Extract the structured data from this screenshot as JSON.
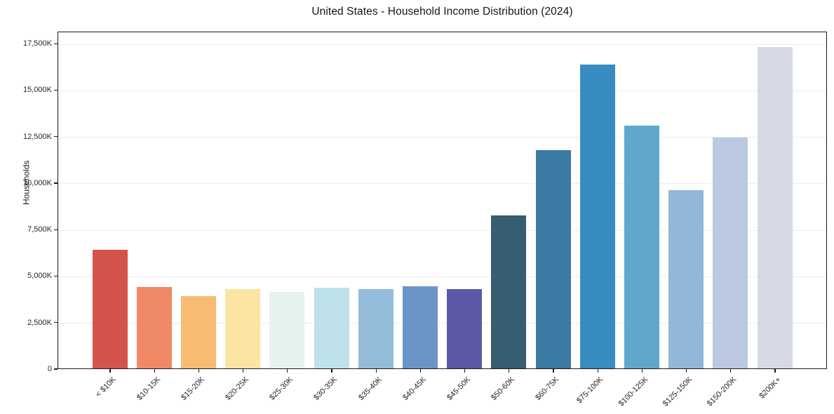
{
  "chart_data": {
    "type": "bar",
    "title": "United States - Household Income Distribution (2024)",
    "xlabel": "",
    "ylabel": "Households",
    "unit": "thousands of households",
    "categories": [
      "< $10K",
      "$10-15K",
      "$15-20K",
      "$20-25K",
      "$25-30K",
      "$30-35K",
      "$35-40K",
      "$40-45K",
      "$45-50K",
      "$50-60K",
      "$60-75K",
      "$75-100K",
      "$100-125K",
      "$125-150K",
      "$150-200K",
      "$200K+"
    ],
    "values": [
      6380,
      4380,
      3890,
      4260,
      4110,
      4340,
      4260,
      4420,
      4260,
      8230,
      11740,
      16340,
      13060,
      9590,
      12420,
      17280
    ],
    "bar_colors": [
      "#d3544b",
      "#f08966",
      "#f7bb74",
      "#fce4a2",
      "#e6f2f0",
      "#bee1ec",
      "#93bdda",
      "#6c95c7",
      "#5b59a6",
      "#365d70",
      "#3a7aa3",
      "#398cc2",
      "#60a8cb",
      "#92b7d8",
      "#bac9df",
      "#d7d9e7"
    ],
    "ytick_values": [
      0,
      2500,
      5000,
      7500,
      10000,
      12500,
      15000,
      17500
    ],
    "ytick_labels": [
      "0",
      "2,500K",
      "5,000K",
      "7,500K",
      "10,000K",
      "12,500K",
      "15,000K",
      "17,500K"
    ],
    "ylim": [
      0,
      18150
    ],
    "grid": "horizontal",
    "legend": "none",
    "background_color": "#ffffff",
    "gridline_color": "#ececec"
  }
}
